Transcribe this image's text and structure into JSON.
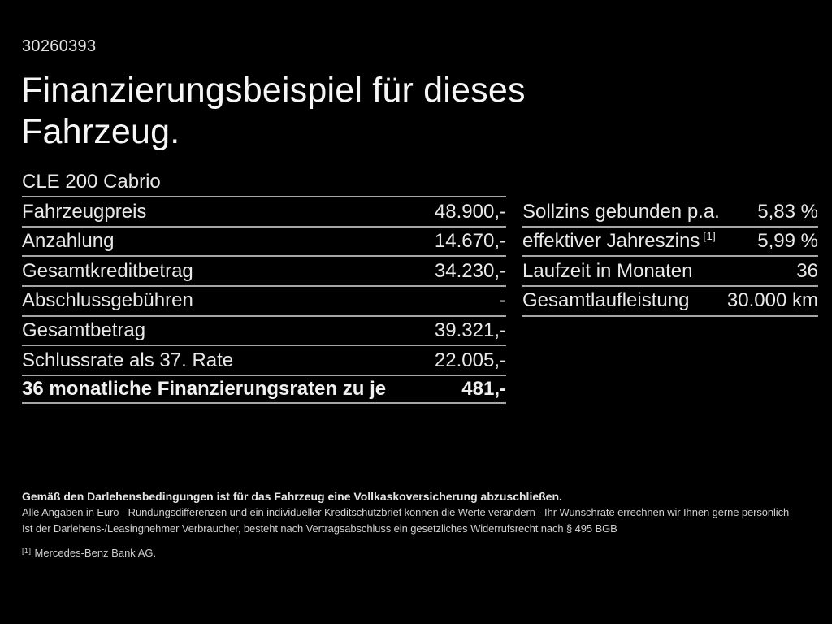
{
  "page": {
    "id_number": "30260393",
    "title_line1": "Finanzierungsbeispiel für dieses",
    "title_line2": "Fahrzeug.",
    "model": "CLE 200 Cabrio"
  },
  "colors": {
    "background": "#000000",
    "text": "#e9e9e9",
    "divider": "#a6a6a6"
  },
  "left_table": {
    "rows": [
      {
        "label": "Fahrzeugpreis",
        "value": "48.900,-"
      },
      {
        "label": "Anzahlung",
        "value": "14.670,-"
      },
      {
        "label": "Gesamtkreditbetrag",
        "value": "34.230,-"
      },
      {
        "label": "Abschlussgebühren",
        "value": "-"
      },
      {
        "label": "Gesamtbetrag",
        "value": "39.321,-"
      },
      {
        "label": "Schlussrate als 37. Rate",
        "value": "22.005,-"
      },
      {
        "label": "36 monatliche Finanzierungsraten zu je",
        "value": "481,-"
      }
    ]
  },
  "right_table": {
    "rows": [
      {
        "label": "Sollzins gebunden p.a.",
        "value": "5,83 %"
      },
      {
        "label": "effektiver Jahreszins",
        "label_sup": "[1]",
        "value": "5,99 %"
      },
      {
        "label": "Laufzeit in Monaten",
        "value": "36"
      },
      {
        "label": "Gesamtlaufleistung",
        "value": "30.000 km"
      }
    ]
  },
  "footnotes": {
    "line1": "Gemäß den Darlehensbedingungen ist für das Fahrzeug eine Vollkaskoversicherung abzuschließen.",
    "line2": "Alle Angaben in Euro - Rundungsdifferenzen und ein individueller Kreditschutzbrief können die Werte verändern - Ihr Wunschrate errechnen wir Ihnen gerne persönlich",
    "line3": "Ist der Darlehens-/Leasingnehmer Verbraucher, besteht nach Vertragsabschluss ein gesetzliches Widerrufsrecht nach § 495 BGB",
    "source_marker": "[1]",
    "source_text": "Mercedes-Benz Bank AG."
  }
}
